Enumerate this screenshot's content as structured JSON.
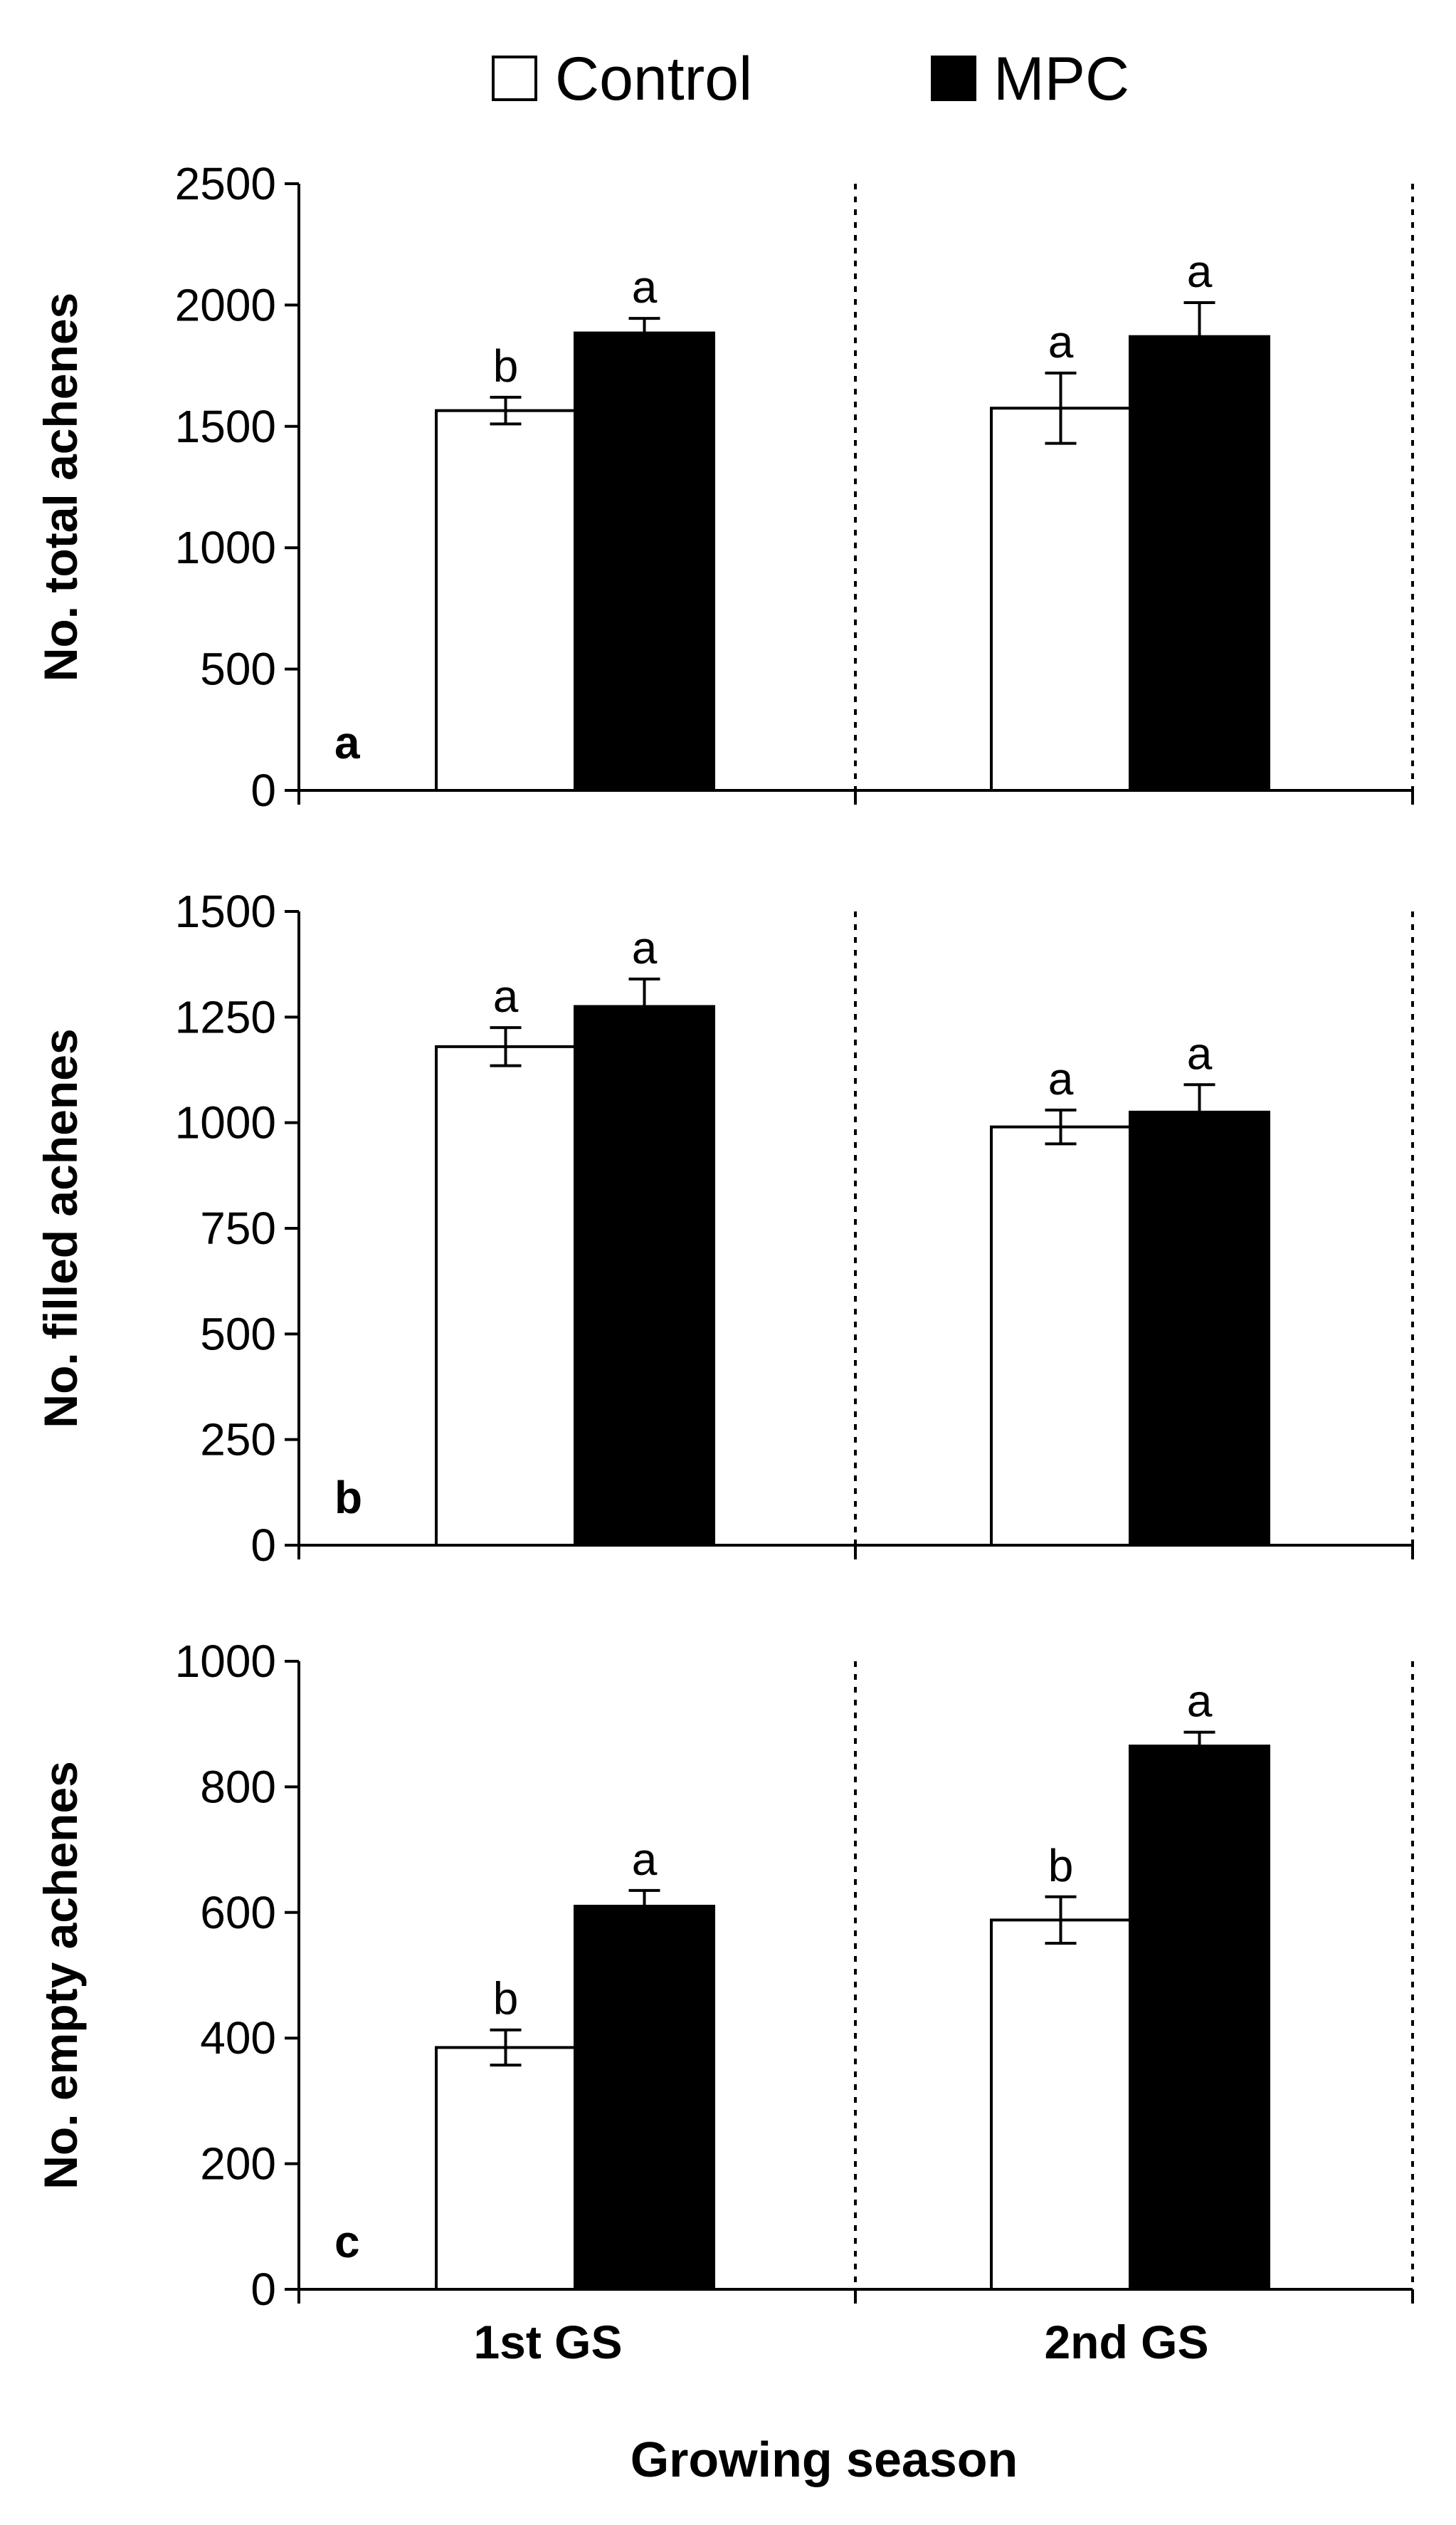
{
  "legend": [
    {
      "name": "Control",
      "color": "#ffffff"
    },
    {
      "name": "MPC",
      "color": "#000000"
    }
  ],
  "xlabel": "Growing season",
  "categories": [
    "1st GS",
    "2nd GS"
  ],
  "chart_data": [
    {
      "type": "bar",
      "panel": "a",
      "ylabel": "No. total achenes",
      "ylim": [
        0,
        2500
      ],
      "yticks": [
        0,
        500,
        1000,
        1500,
        2000,
        2500
      ],
      "categories": [
        "1st GS",
        "2nd GS"
      ],
      "series": [
        {
          "name": "Control",
          "values": [
            1565,
            1575
          ],
          "errors": [
            55,
            145
          ],
          "letters": [
            "b",
            "a"
          ]
        },
        {
          "name": "MPC",
          "values": [
            1885,
            1870
          ],
          "errors": [
            60,
            140
          ],
          "letters": [
            "a",
            "a"
          ]
        }
      ]
    },
    {
      "type": "bar",
      "panel": "b",
      "ylabel": "No. filled achenes",
      "ylim": [
        0,
        1500
      ],
      "yticks": [
        0,
        250,
        500,
        750,
        1000,
        1250,
        1500
      ],
      "categories": [
        "1st GS",
        "2nd GS"
      ],
      "series": [
        {
          "name": "Control",
          "values": [
            1180,
            990
          ],
          "errors": [
            45,
            40
          ],
          "letters": [
            "a",
            "a"
          ]
        },
        {
          "name": "MPC",
          "values": [
            1275,
            1025
          ],
          "errors": [
            65,
            65
          ],
          "letters": [
            "a",
            "a"
          ]
        }
      ]
    },
    {
      "type": "bar",
      "panel": "c",
      "ylabel": "No. empty achenes",
      "ylim": [
        0,
        1000
      ],
      "yticks": [
        0,
        200,
        400,
        600,
        800,
        1000
      ],
      "categories": [
        "1st GS",
        "2nd GS"
      ],
      "series": [
        {
          "name": "Control",
          "values": [
            385,
            588
          ],
          "errors": [
            28,
            37
          ],
          "letters": [
            "b",
            "b"
          ]
        },
        {
          "name": "MPC",
          "values": [
            610,
            865
          ],
          "errors": [
            25,
            22
          ],
          "letters": [
            "a",
            "a"
          ]
        }
      ]
    }
  ]
}
